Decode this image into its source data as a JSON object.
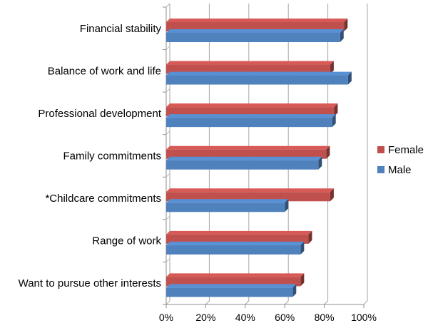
{
  "chart_data": {
    "type": "bar",
    "orientation": "horizontal",
    "categories": [
      "Financial stability",
      "Balance of work and life",
      "Professional development",
      "Family commitments",
      "*Childcare commitments",
      "Range of work",
      "Want to pursue other interests"
    ],
    "series": [
      {
        "name": "Female",
        "color": "#C0504D",
        "values": [
          90,
          83,
          85,
          81,
          83,
          72,
          68
        ]
      },
      {
        "name": "Male",
        "color": "#4F81BD",
        "values": [
          88,
          92,
          84,
          77,
          60,
          68,
          64
        ]
      }
    ],
    "xlim": [
      0,
      100
    ],
    "x_ticks": [
      0,
      20,
      40,
      60,
      80,
      100
    ],
    "x_tick_labels": [
      "0%",
      "20%",
      "40%",
      "60%",
      "80%",
      "100%"
    ],
    "grid": true,
    "legend": {
      "position": "right",
      "entries": [
        "Female",
        "Male"
      ]
    },
    "style": "3d-bar"
  }
}
